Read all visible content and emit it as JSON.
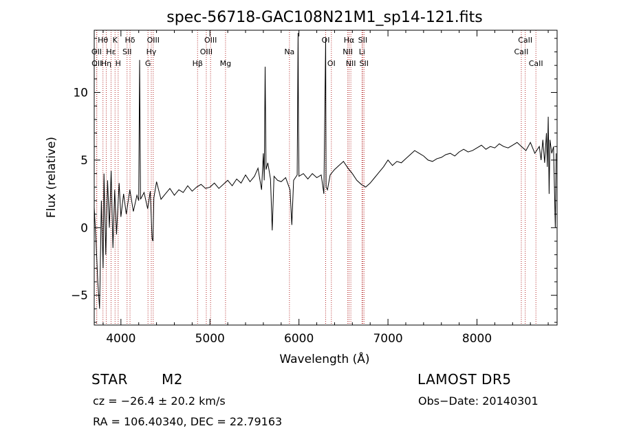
{
  "chart_data": {
    "type": "line",
    "title": "spec-56718-GAC108N21M1_sp14-121.fits",
    "xlabel": "Wavelength (Å)",
    "ylabel": "Flux (relative)",
    "xlim": [
      3700,
      8900
    ],
    "ylim": [
      -7.2,
      14.6
    ],
    "xticks": [
      4000,
      5000,
      6000,
      7000,
      8000
    ],
    "yticks": [
      -5,
      0,
      5,
      10
    ],
    "xtick_labels": [
      "4000",
      "5000",
      "6000",
      "7000",
      "8000"
    ],
    "ytick_labels": [
      "−5",
      "0",
      "5",
      "10"
    ],
    "grid": false,
    "series": [
      {
        "points": [
          [
            3700,
            1.5
          ],
          [
            3720,
            -1.0
          ],
          [
            3740,
            -4.0
          ],
          [
            3760,
            -6.0
          ],
          [
            3780,
            2.0
          ],
          [
            3800,
            -3.0
          ],
          [
            3810,
            4.0
          ],
          [
            3830,
            -2.0
          ],
          [
            3850,
            3.5
          ],
          [
            3870,
            0.0
          ],
          [
            3890,
            4.2
          ],
          [
            3910,
            -1.5
          ],
          [
            3930,
            2.8
          ],
          [
            3950,
            -0.5
          ],
          [
            3980,
            3.3
          ],
          [
            4000,
            0.8
          ],
          [
            4030,
            2.5
          ],
          [
            4060,
            1.0
          ],
          [
            4100,
            2.8
          ],
          [
            4140,
            1.2
          ],
          [
            4180,
            2.4
          ],
          [
            4200,
            2.0
          ],
          [
            4210,
            12.4
          ],
          [
            4220,
            2.1
          ],
          [
            4260,
            2.6
          ],
          [
            4300,
            1.4
          ],
          [
            4330,
            2.7
          ],
          [
            4350,
            -0.8
          ],
          [
            4360,
            -1.0
          ],
          [
            4370,
            2.2
          ],
          [
            4400,
            3.4
          ],
          [
            4450,
            2.1
          ],
          [
            4500,
            2.5
          ],
          [
            4550,
            2.9
          ],
          [
            4600,
            2.4
          ],
          [
            4650,
            2.8
          ],
          [
            4700,
            2.6
          ],
          [
            4750,
            3.1
          ],
          [
            4800,
            2.7
          ],
          [
            4850,
            3.0
          ],
          [
            4900,
            3.2
          ],
          [
            4950,
            2.9
          ],
          [
            5000,
            3.0
          ],
          [
            5050,
            3.3
          ],
          [
            5100,
            2.9
          ],
          [
            5150,
            3.2
          ],
          [
            5200,
            3.5
          ],
          [
            5250,
            3.1
          ],
          [
            5300,
            3.6
          ],
          [
            5350,
            3.3
          ],
          [
            5400,
            3.9
          ],
          [
            5450,
            3.4
          ],
          [
            5500,
            3.8
          ],
          [
            5540,
            4.4
          ],
          [
            5580,
            2.8
          ],
          [
            5600,
            5.5
          ],
          [
            5610,
            3.5
          ],
          [
            5620,
            11.9
          ],
          [
            5630,
            4.3
          ],
          [
            5650,
            4.8
          ],
          [
            5680,
            3.6
          ],
          [
            5700,
            -0.2
          ],
          [
            5720,
            3.8
          ],
          [
            5760,
            3.5
          ],
          [
            5800,
            3.4
          ],
          [
            5850,
            3.7
          ],
          [
            5900,
            2.8
          ],
          [
            5920,
            0.2
          ],
          [
            5940,
            3.5
          ],
          [
            5980,
            3.9
          ],
          [
            5990,
            14.4
          ],
          [
            5995,
            7.5
          ],
          [
            6000,
            3.8
          ],
          [
            6050,
            4.0
          ],
          [
            6100,
            3.6
          ],
          [
            6150,
            4.0
          ],
          [
            6200,
            3.7
          ],
          [
            6250,
            3.9
          ],
          [
            6280,
            2.5
          ],
          [
            6300,
            14.0
          ],
          [
            6305,
            3.0
          ],
          [
            6320,
            2.8
          ],
          [
            6350,
            3.9
          ],
          [
            6400,
            4.3
          ],
          [
            6450,
            4.6
          ],
          [
            6500,
            4.9
          ],
          [
            6550,
            4.4
          ],
          [
            6600,
            4.0
          ],
          [
            6650,
            3.5
          ],
          [
            6700,
            3.2
          ],
          [
            6750,
            3.0
          ],
          [
            6800,
            3.3
          ],
          [
            6850,
            3.7
          ],
          [
            6900,
            4.1
          ],
          [
            6950,
            4.5
          ],
          [
            7000,
            5.0
          ],
          [
            7050,
            4.6
          ],
          [
            7100,
            4.9
          ],
          [
            7150,
            4.8
          ],
          [
            7200,
            5.1
          ],
          [
            7250,
            5.4
          ],
          [
            7300,
            5.7
          ],
          [
            7350,
            5.5
          ],
          [
            7400,
            5.3
          ],
          [
            7450,
            5.0
          ],
          [
            7500,
            4.9
          ],
          [
            7550,
            5.1
          ],
          [
            7600,
            5.2
          ],
          [
            7650,
            5.4
          ],
          [
            7700,
            5.5
          ],
          [
            7750,
            5.3
          ],
          [
            7800,
            5.6
          ],
          [
            7850,
            5.8
          ],
          [
            7900,
            5.6
          ],
          [
            7950,
            5.7
          ],
          [
            8000,
            5.9
          ],
          [
            8050,
            6.1
          ],
          [
            8100,
            5.8
          ],
          [
            8150,
            6.0
          ],
          [
            8200,
            5.9
          ],
          [
            8250,
            6.2
          ],
          [
            8300,
            6.0
          ],
          [
            8350,
            5.9
          ],
          [
            8400,
            6.1
          ],
          [
            8450,
            6.3
          ],
          [
            8500,
            6.0
          ],
          [
            8550,
            5.7
          ],
          [
            8600,
            6.3
          ],
          [
            8650,
            5.5
          ],
          [
            8700,
            6.0
          ],
          [
            8720,
            5.0
          ],
          [
            8740,
            6.5
          ],
          [
            8760,
            4.8
          ],
          [
            8780,
            7.0
          ],
          [
            8790,
            4.5
          ],
          [
            8800,
            8.2
          ],
          [
            8810,
            2.5
          ],
          [
            8820,
            6.5
          ],
          [
            8840,
            5.5
          ],
          [
            8860,
            6.0
          ],
          [
            8880,
            0.0
          ],
          [
            8890,
            5.5
          ]
        ]
      }
    ],
    "lines": [
      {
        "label": "Hθ",
        "x": 3798,
        "row": 0
      },
      {
        "label": "OII",
        "x": 3727,
        "row": 1
      },
      {
        "label": "OII",
        "x": 3729,
        "row": 2
      },
      {
        "label": "K",
        "x": 3934,
        "row": 0
      },
      {
        "label": "Hε",
        "x": 3889,
        "row": 1
      },
      {
        "label": "Hη",
        "x": 3835,
        "row": 2
      },
      {
        "label": "H",
        "x": 3969,
        "row": 2
      },
      {
        "label": "Hδ",
        "x": 4102,
        "row": 0
      },
      {
        "label": "SII",
        "x": 4069,
        "row": 1
      },
      {
        "label": "OIII",
        "x": 4363,
        "row": 0
      },
      {
        "label": "Hγ",
        "x": 4341,
        "row": 1
      },
      {
        "label": "G",
        "x": 4304,
        "row": 2
      },
      {
        "label": "OIII",
        "x": 5007,
        "row": 0
      },
      {
        "label": "OIII",
        "x": 4959,
        "row": 1
      },
      {
        "label": "Hβ",
        "x": 4861,
        "row": 2
      },
      {
        "label": "Mg",
        "x": 5175,
        "row": 2
      },
      {
        "label": "Na",
        "x": 5893,
        "row": 1
      },
      {
        "label": "OI",
        "x": 6300,
        "row": 0
      },
      {
        "label": "OI",
        "x": 6364,
        "row": 2
      },
      {
        "label": "Hα",
        "x": 6563,
        "row": 0
      },
      {
        "label": "NII",
        "x": 6548,
        "row": 1
      },
      {
        "label": "NII",
        "x": 6583,
        "row": 2
      },
      {
        "label": "SII",
        "x": 6716,
        "row": 0
      },
      {
        "label": "Li",
        "x": 6708,
        "row": 1
      },
      {
        "label": "SII",
        "x": 6731,
        "row": 2
      },
      {
        "label": "CaII",
        "x": 8542,
        "row": 0
      },
      {
        "label": "CaII",
        "x": 8498,
        "row": 1
      },
      {
        "label": "CaII",
        "x": 8662,
        "row": 2
      }
    ]
  },
  "info": {
    "class": "STAR",
    "subclass": "M2",
    "survey": "LAMOST DR5",
    "cz": "cz = −26.4 ± 20.2 km/s",
    "obs_date": "Obs−Date: 20140301",
    "coords": "RA = 106.40340, DEC =  22.79163"
  },
  "colors": {
    "line_marker": "#b22222",
    "spectrum": "#000000",
    "axis": "#000000"
  }
}
